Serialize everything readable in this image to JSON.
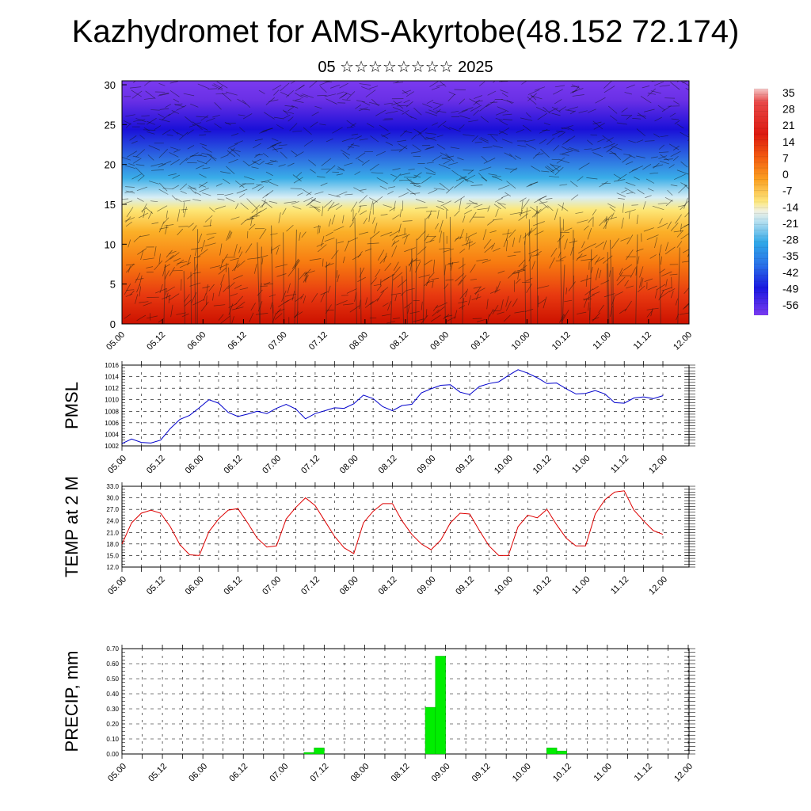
{
  "header": {
    "title": "Kazhydromet for AMS-Akyrtobe(48.152 72.174)",
    "subtitle": "05 ☆☆☆☆☆☆☆☆ 2025"
  },
  "colors": {
    "pmsl_line": "#0000cc",
    "temp_line": "#dd0000",
    "precip_bar": "#00ee00"
  },
  "chart_data": [
    {
      "type": "heatmap",
      "name": "vertical-cross-section",
      "x_ticks": [
        "05.00",
        "05.12",
        "06.00",
        "06.12",
        "07.00",
        "07.12",
        "08.00",
        "08.12",
        "09.00",
        "09.12",
        "10.00",
        "10.12",
        "11.00",
        "11.12",
        "12.00"
      ],
      "y_ticks": [
        "0",
        "5",
        "10",
        "15",
        "20",
        "25",
        "30"
      ],
      "ylim": [
        0,
        30.5
      ],
      "colorbar_labels": [
        "35",
        "28",
        "21",
        "14",
        "7",
        "0",
        "-7",
        "-14",
        "-21",
        "-28",
        "-35",
        "-42",
        "-49",
        "-56"
      ],
      "colorbar_range": [
        -56,
        35
      ]
    },
    {
      "type": "line",
      "name": "pmsl",
      "ylabel": "PMSL",
      "x_ticks": [
        "05.00",
        "05.12",
        "06.00",
        "06.12",
        "07.00",
        "07.12",
        "08.00",
        "08.12",
        "09.00",
        "09.12",
        "10.00",
        "10.12",
        "11.00",
        "11.12",
        "12.00"
      ],
      "y_ticks": [
        "1002",
        "1004",
        "1006",
        "1008",
        "1010",
        "1012",
        "1014",
        "1016"
      ],
      "ylim": [
        1002,
        1016
      ],
      "values": [
        1002.4,
        1003.2,
        1002.6,
        1002.5,
        1003.0,
        1005.0,
        1006.6,
        1007.3,
        1008.6,
        1010.0,
        1009.4,
        1007.8,
        1007.1,
        1007.5,
        1008.0,
        1007.6,
        1008.5,
        1009.2,
        1008.4,
        1006.7,
        1007.6,
        1008.1,
        1008.6,
        1008.5,
        1009.3,
        1010.8,
        1010.2,
        1008.8,
        1008.1,
        1009.0,
        1009.2,
        1011.2,
        1011.9,
        1012.5,
        1012.6,
        1011.3,
        1010.9,
        1012.3,
        1012.8,
        1013.1,
        1014.2,
        1015.2,
        1014.6,
        1013.8,
        1012.8,
        1012.9,
        1011.9,
        1011.0,
        1011.1,
        1011.6,
        1011.0,
        1009.5,
        1009.4,
        1010.3,
        1010.5,
        1010.2,
        1010.7
      ]
    },
    {
      "type": "line",
      "name": "temp-2m",
      "ylabel": "TEMP at 2 M",
      "x_ticks": [
        "05.00",
        "05.12",
        "06.00",
        "06.12",
        "07.00",
        "07.12",
        "08.00",
        "08.12",
        "09.00",
        "09.12",
        "10.00",
        "10.12",
        "11.00",
        "11.12",
        "12.00"
      ],
      "y_ticks": [
        "12.0",
        "15.0",
        "18.0",
        "21.0",
        "24.0",
        "27.0",
        "30.0",
        "33.0"
      ],
      "ylim": [
        12,
        33
      ],
      "values": [
        18.0,
        23.5,
        26.0,
        26.8,
        26.0,
        22.5,
        17.8,
        15.2,
        15.0,
        21.2,
        24.5,
        26.8,
        27.2,
        23.5,
        19.5,
        17.2,
        17.5,
        24.5,
        27.5,
        30.0,
        28.0,
        24.0,
        20.0,
        17.0,
        15.5,
        23.5,
        26.5,
        28.5,
        28.5,
        24.0,
        20.5,
        18.0,
        16.5,
        19.0,
        23.5,
        26.0,
        25.8,
        21.5,
        17.5,
        15.0,
        15.0,
        22.5,
        25.5,
        24.8,
        27.0,
        23.0,
        19.5,
        17.5,
        17.5,
        25.8,
        29.5,
        31.5,
        31.8,
        26.8,
        24.0,
        21.5,
        20.5
      ]
    },
    {
      "type": "bar",
      "name": "precip",
      "ylabel": "PRECIP, mm",
      "x_ticks": [
        "05.00",
        "05.12",
        "06.00",
        "06.12",
        "07.00",
        "07.12",
        "08.00",
        "08.12",
        "09.00",
        "09.12",
        "10.00",
        "10.12",
        "11.00",
        "11.12",
        "12.00"
      ],
      "y_ticks": [
        "0.00",
        "0.10",
        "0.20",
        "0.30",
        "0.40",
        "0.50",
        "0.60",
        "0.70"
      ],
      "ylim": [
        0,
        0.7
      ],
      "bars": [
        {
          "hour": 57,
          "value": 0.01
        },
        {
          "hour": 60,
          "value": 0.04
        },
        {
          "hour": 93,
          "value": 0.31
        },
        {
          "hour": 96,
          "value": 0.65
        },
        {
          "hour": 129,
          "value": 0.04
        },
        {
          "hour": 132,
          "value": 0.02
        }
      ]
    }
  ]
}
